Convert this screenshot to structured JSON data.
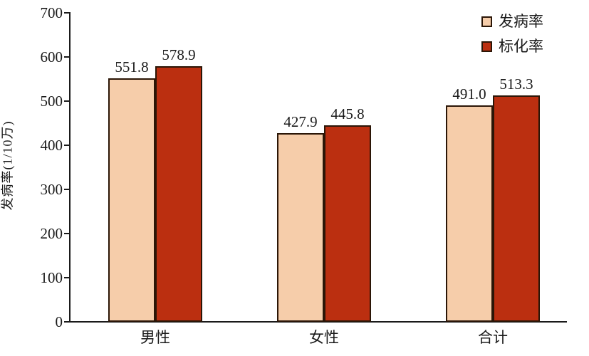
{
  "chart_data": {
    "type": "bar",
    "categories": [
      "男性",
      "女性",
      "合计"
    ],
    "series": [
      {
        "name": "发病率",
        "values": [
          551.8,
          427.9,
          491.0
        ],
        "color": "#F6CDAA"
      },
      {
        "name": "标化率",
        "values": [
          578.9,
          445.8,
          513.3
        ],
        "color": "#BB2F10"
      }
    ],
    "title": "",
    "xlabel": "",
    "ylabel": "发病率(1/10万)",
    "ylim": [
      0,
      700
    ],
    "yticks": [
      0,
      100,
      200,
      300,
      400,
      500,
      600,
      700
    ],
    "grid": false,
    "legend_position": "top-right",
    "value_label_decimals": 1,
    "bar_border_color": "#2B1607",
    "axis_color": "#1A1A1A",
    "text_color": "#1A1A1A",
    "background_color": "#FFFFFF"
  }
}
